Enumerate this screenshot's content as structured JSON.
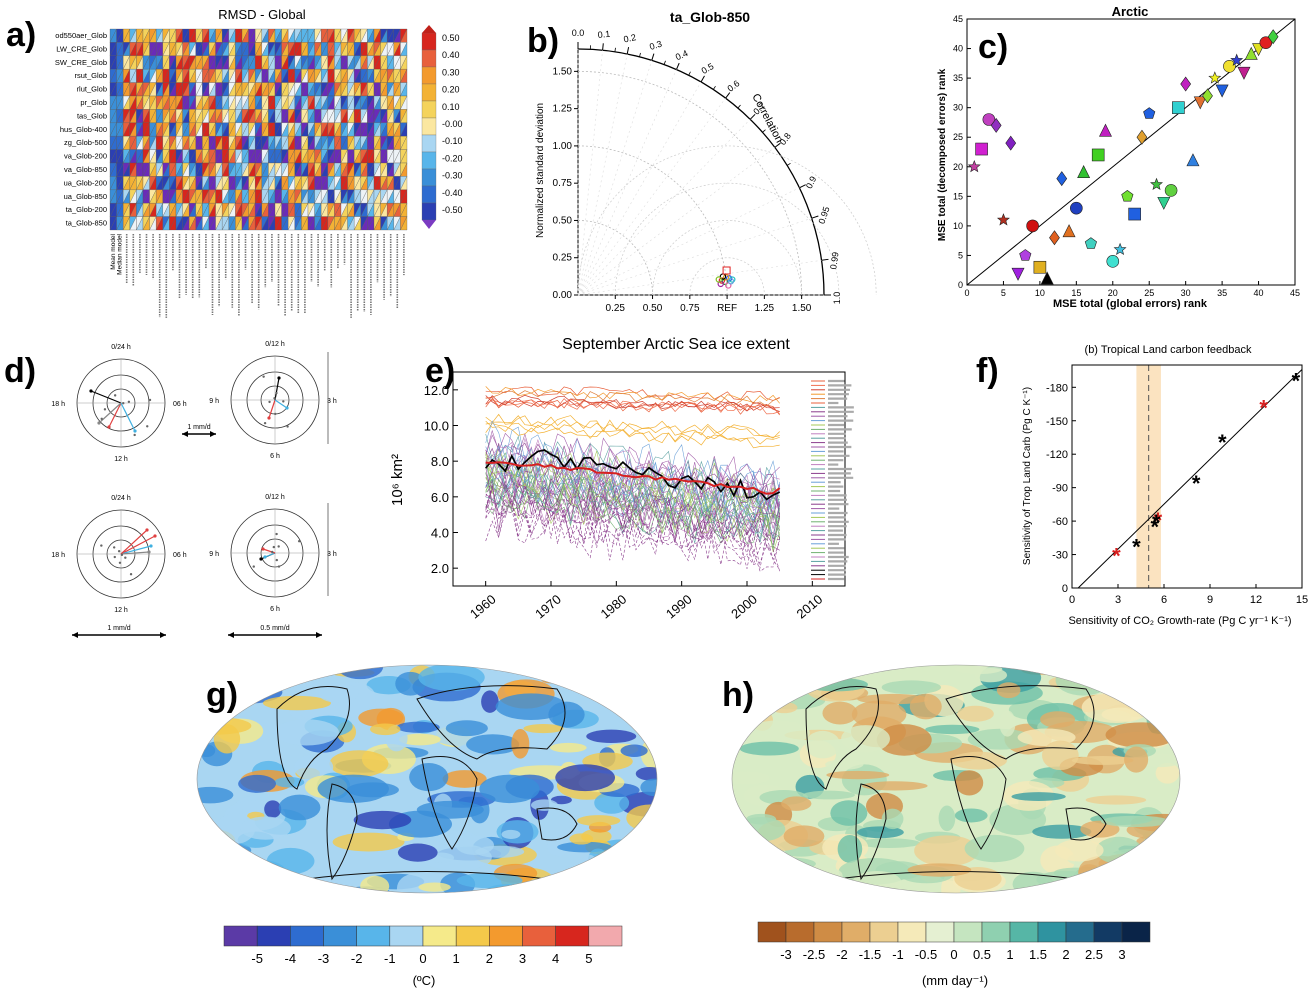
{
  "panel_labels": [
    "a)",
    "b)",
    "c)",
    "d)",
    "e)",
    "f)",
    "g)",
    "h)"
  ],
  "colors": {
    "div_blue_dark": "#2b3fb3",
    "div_blue": "#3a8fd8",
    "div_blue_light": "#a9d6f2",
    "div_yellow": "#f4d35c",
    "div_orange": "#f39a2e",
    "div_red": "#d7261e",
    "sea_ice_reds": "#e8603c",
    "sea_ice_purple": "#8a3c8c",
    "sea_ice_green": "#a5c85a",
    "obs_black": "#000000",
    "mean_red": "#d72020"
  },
  "chart_data": [
    {
      "panel": "a",
      "type": "heatmap",
      "title": "RMSD - Global",
      "rows": [
        "od550aer_Glob",
        "LW_CRE_Glob",
        "SW_CRE_Glob",
        "rsut_Glob",
        "rlut_Glob",
        "pr_Glob",
        "tas_Glob",
        "hus_Glob-400",
        "zg_Glob-500",
        "va_Glob-200",
        "va_Glob-850",
        "ua_Glob-200",
        "ua_Glob-850",
        "ta_Glob-200",
        "ta_Glob-850"
      ],
      "columns_visible": [
        "Mean model",
        "Median model"
      ],
      "colorbar_ticks": [
        "0.50",
        "0.40",
        "0.30",
        "0.20",
        "0.10",
        "-0.00",
        "-0.10",
        "-0.20",
        "-0.30",
        "-0.40",
        "-0.50"
      ],
      "colorbar_range": [
        -0.5,
        0.5
      ],
      "n_columns": 45
    },
    {
      "panel": "b",
      "type": "scatter",
      "subtype": "taylor",
      "title": "ta_Glob-850",
      "ylabel": "Normalized standard deviation",
      "arc_label": "Correlation",
      "correlation_ticks": [
        "0.0",
        "0.1",
        "0.2",
        "0.3",
        "0.4",
        "0.5",
        "0.6",
        "0.7",
        "0.8",
        "0.9",
        "0.95",
        "0.99",
        "1.0"
      ],
      "std_ticks": [
        "0.00",
        "0.25",
        "0.50",
        "0.75",
        "1.00",
        "1.25",
        "1.50"
      ],
      "x_ticks": [
        "0.25",
        "0.50",
        "0.75",
        "REF",
        "1.25",
        "1.50"
      ],
      "points": [
        {
          "std": 0.97,
          "corr": 0.995
        },
        {
          "std": 0.99,
          "corr": 0.996
        },
        {
          "std": 1.02,
          "corr": 0.994
        },
        {
          "std": 1.0,
          "corr": 0.993
        },
        {
          "std": 0.96,
          "corr": 0.997
        },
        {
          "std": 1.04,
          "corr": 0.995
        },
        {
          "std": 0.98,
          "corr": 0.992
        },
        {
          "std": 1.01,
          "corr": 0.998
        },
        {
          "std": 1.03,
          "corr": 0.996
        },
        {
          "std": 0.95,
          "corr": 0.994
        }
      ]
    },
    {
      "panel": "c",
      "type": "scatter",
      "title": "Arctic",
      "xlabel": "MSE total (global errors) rank",
      "ylabel": "MSE total (decomposed errors) rank",
      "xlim": [
        0,
        45
      ],
      "ylim": [
        0,
        45
      ],
      "x_ticks": [
        "0",
        "5",
        "10",
        "15",
        "20",
        "25",
        "30",
        "35",
        "40",
        "45"
      ],
      "y_ticks": [
        "0",
        "5",
        "10",
        "15",
        "20",
        "25",
        "30",
        "35",
        "40",
        "45"
      ],
      "points": [
        {
          "x": 1,
          "y": 20,
          "shape": "star",
          "color": "#c040a0"
        },
        {
          "x": 2,
          "y": 23,
          "shape": "square",
          "color": "#d020d0"
        },
        {
          "x": 3,
          "y": 28,
          "shape": "circle",
          "color": "#c040c0"
        },
        {
          "x": 4,
          "y": 27,
          "shape": "diamond",
          "color": "#9030c0"
        },
        {
          "x": 5,
          "y": 11,
          "shape": "star",
          "color": "#b03020"
        },
        {
          "x": 6,
          "y": 24,
          "shape": "diamond",
          "color": "#8020c0"
        },
        {
          "x": 7,
          "y": 2,
          "shape": "tri-down",
          "color": "#a020e0"
        },
        {
          "x": 8,
          "y": 5,
          "shape": "pentagon",
          "color": "#b040e0"
        },
        {
          "x": 9,
          "y": 10,
          "shape": "circle",
          "color": "#d01010"
        },
        {
          "x": 10,
          "y": 3,
          "shape": "square",
          "color": "#e0b020"
        },
        {
          "x": 11,
          "y": 1,
          "shape": "triangle",
          "color": "#000000"
        },
        {
          "x": 12,
          "y": 8,
          "shape": "diamond",
          "color": "#e06020"
        },
        {
          "x": 13,
          "y": 18,
          "shape": "diamond",
          "color": "#2060e0"
        },
        {
          "x": 14,
          "y": 9,
          "shape": "triangle",
          "color": "#e07020"
        },
        {
          "x": 15,
          "y": 13,
          "shape": "circle",
          "color": "#2040c0"
        },
        {
          "x": 16,
          "y": 19,
          "shape": "triangle",
          "color": "#30c030"
        },
        {
          "x": 17,
          "y": 7,
          "shape": "pentagon",
          "color": "#40d0c0"
        },
        {
          "x": 18,
          "y": 22,
          "shape": "square",
          "color": "#40d020"
        },
        {
          "x": 19,
          "y": 26,
          "shape": "triangle",
          "color": "#c020c0"
        },
        {
          "x": 20,
          "y": 4,
          "shape": "circle",
          "color": "#40e0d0"
        },
        {
          "x": 21,
          "y": 6,
          "shape": "star",
          "color": "#40c0e0"
        },
        {
          "x": 22,
          "y": 15,
          "shape": "pentagon",
          "color": "#70e030"
        },
        {
          "x": 23,
          "y": 12,
          "shape": "square",
          "color": "#2060e0"
        },
        {
          "x": 24,
          "y": 25,
          "shape": "diamond",
          "color": "#e0a030"
        },
        {
          "x": 25,
          "y": 29,
          "shape": "pentagon",
          "color": "#2060e0"
        },
        {
          "x": 26,
          "y": 17,
          "shape": "star",
          "color": "#40c040"
        },
        {
          "x": 27,
          "y": 14,
          "shape": "tri-down",
          "color": "#30d090"
        },
        {
          "x": 28,
          "y": 16,
          "shape": "circle",
          "color": "#60d040"
        },
        {
          "x": 29,
          "y": 30,
          "shape": "square",
          "color": "#30d0d0"
        },
        {
          "x": 30,
          "y": 34,
          "shape": "diamond",
          "color": "#c020c0"
        },
        {
          "x": 31,
          "y": 21,
          "shape": "triangle",
          "color": "#3080e0"
        },
        {
          "x": 32,
          "y": 31,
          "shape": "tri-down",
          "color": "#e07030"
        },
        {
          "x": 33,
          "y": 32,
          "shape": "diamond",
          "color": "#90e030"
        },
        {
          "x": 34,
          "y": 35,
          "shape": "star",
          "color": "#f0f020"
        },
        {
          "x": 35,
          "y": 33,
          "shape": "tri-down",
          "color": "#2060e0"
        },
        {
          "x": 36,
          "y": 37,
          "shape": "circle",
          "color": "#f0e030"
        },
        {
          "x": 37,
          "y": 38,
          "shape": "star",
          "color": "#3040d0"
        },
        {
          "x": 38,
          "y": 36,
          "shape": "tri-down",
          "color": "#c02090"
        },
        {
          "x": 39,
          "y": 39,
          "shape": "triangle",
          "color": "#90e030"
        },
        {
          "x": 40,
          "y": 40,
          "shape": "tri-down",
          "color": "#e0e020"
        },
        {
          "x": 41,
          "y": 41,
          "shape": "circle",
          "color": "#e02020"
        },
        {
          "x": 42,
          "y": 42,
          "shape": "diamond",
          "color": "#40d040"
        }
      ]
    },
    {
      "panel": "d",
      "type": "scatter",
      "subtype": "harmonic-dials",
      "dials": [
        {
          "top": "0/24 h",
          "left": "18 h",
          "right": "06 h",
          "bottom": "12 h"
        },
        {
          "top": "0/12 h",
          "left": "9 h",
          "right": "3 h",
          "bottom": "6 h"
        },
        {
          "top": "0/24 h",
          "left": "18 h",
          "right": "06 h",
          "bottom": "12 h"
        },
        {
          "top": "0/12 h",
          "left": "9 h",
          "right": "3 h",
          "bottom": "6 h"
        }
      ],
      "scales": [
        "1 mm/d",
        "1 mm/d",
        "0.5 mm/d"
      ]
    },
    {
      "panel": "e",
      "type": "line",
      "title": "September Arctic Sea ice extent",
      "ylabel": "10⁶ km²",
      "x_ticks": [
        "1960",
        "1970",
        "1980",
        "1990",
        "2000",
        "2010"
      ],
      "y_ticks": [
        "2.0",
        "4.0",
        "6.0",
        "8.0",
        "10.0",
        "12.0"
      ],
      "xlim": [
        1955,
        2015
      ],
      "ylim": [
        1.0,
        13.0
      ],
      "series": [
        {
          "kind": "obs",
          "values_x": [
            1960,
            1965,
            1970,
            1975,
            1980,
            1985,
            1990,
            1995,
            2000,
            2005
          ],
          "values": [
            7.7,
            8.0,
            8.3,
            7.8,
            7.6,
            7.2,
            6.9,
            6.6,
            6.4,
            5.8
          ]
        },
        {
          "kind": "mean",
          "values_x": [
            1960,
            1965,
            1970,
            1975,
            1980,
            1985,
            1990,
            1995,
            2000,
            2005
          ],
          "values": [
            7.9,
            7.8,
            7.7,
            7.5,
            7.3,
            7.1,
            6.9,
            6.7,
            6.5,
            6.1
          ]
        }
      ]
    },
    {
      "panel": "f",
      "type": "scatter",
      "title": "(b) Tropical Land carbon feedback",
      "xlabel": "Sensitivity of CO₂ Growth-rate (Pg C yr⁻¹ K⁻¹)",
      "ylabel": "Sensitivity of Trop Land Carb (Pg C K⁻¹)",
      "x_ticks": [
        "0",
        "3",
        "6",
        "9",
        "12",
        "15"
      ],
      "y_ticks": [
        "0",
        "-30",
        "-60",
        "-90",
        "-120",
        "-150",
        "-180"
      ],
      "xlim": [
        0,
        15
      ],
      "ylim": [
        0,
        -200
      ],
      "points": [
        {
          "x": 2.9,
          "y": -30,
          "color": "#d82020"
        },
        {
          "x": 4.2,
          "y": -38,
          "color": "#000000"
        },
        {
          "x": 5.4,
          "y": -56,
          "color": "#000000"
        },
        {
          "x": 5.6,
          "y": -62,
          "color": "#d82020"
        },
        {
          "x": 5.5,
          "y": -60,
          "color": "#000000"
        },
        {
          "x": 8.1,
          "y": -95,
          "color": "#000000"
        },
        {
          "x": 9.8,
          "y": -132,
          "color": "#000000"
        },
        {
          "x": 12.5,
          "y": -163,
          "color": "#d82020"
        },
        {
          "x": 14.6,
          "y": -187,
          "color": "#000000"
        }
      ],
      "fit_line": [
        [
          0.4,
          0
        ],
        [
          15,
          -196
        ]
      ],
      "obs_band": [
        4.2,
        5.8
      ],
      "obs_value": 5.0
    },
    {
      "panel": "g",
      "type": "heatmap",
      "subtype": "global-map",
      "colorbar_ticks": [
        "-5",
        "-4",
        "-3",
        "-2",
        "-1",
        "0",
        "1",
        "2",
        "3",
        "4",
        "5"
      ],
      "colorbar_label": "(ºC)"
    },
    {
      "panel": "h",
      "type": "heatmap",
      "subtype": "global-map",
      "colorbar_ticks": [
        "-3",
        "-2.5",
        "-2",
        "-1.5",
        "-1",
        "-0.5",
        "0",
        "0.5",
        "1",
        "1.5",
        "2",
        "2.5",
        "3"
      ],
      "colorbar_label": "(mm day⁻¹)"
    }
  ]
}
